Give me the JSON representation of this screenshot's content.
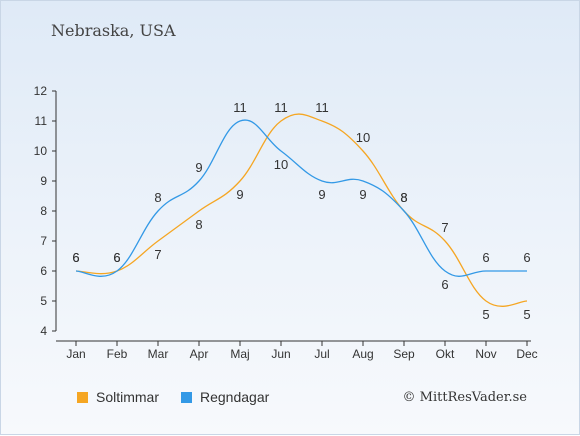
{
  "header": {
    "title": "Nebraska, USA"
  },
  "footer": {
    "copyright": "© MittResVader.se"
  },
  "colors": {
    "sun": "#f5a623",
    "rain": "#3399e6",
    "axis": "#333333",
    "text": "#333333"
  },
  "chart_data": {
    "type": "line",
    "title": "Nebraska, USA",
    "xlabel": "",
    "ylabel": "",
    "categories": [
      "Jan",
      "Feb",
      "Mar",
      "Apr",
      "Maj",
      "Jun",
      "Jul",
      "Aug",
      "Sep",
      "Okt",
      "Nov",
      "Dec"
    ],
    "ylim": [
      4,
      12
    ],
    "yticks": [
      4,
      5,
      6,
      7,
      8,
      9,
      10,
      11,
      12
    ],
    "grid": false,
    "legend_position": "bottom-left",
    "series": [
      {
        "name": "Soltimmar",
        "color": "#f5a623",
        "values": [
          6,
          6,
          7,
          8,
          9,
          11,
          11,
          10,
          8,
          7,
          5,
          5
        ]
      },
      {
        "name": "Regndagar",
        "color": "#3399e6",
        "values": [
          6,
          6,
          8,
          9,
          11,
          10,
          9,
          9,
          8,
          6,
          6,
          6
        ]
      }
    ]
  }
}
